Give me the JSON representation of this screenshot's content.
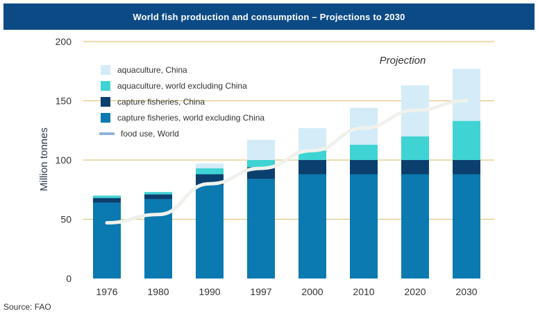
{
  "title": "World fish production and consumption  – Projections to 2030",
  "source": "Source: FAO",
  "chart_data": {
    "type": "bar",
    "stacked": true,
    "categories": [
      "1976",
      "1980",
      "1990",
      "1997",
      "2000",
      "2010",
      "2020",
      "2030"
    ],
    "ylabel": "Million tonnes",
    "xlabel": "",
    "ylim": [
      0,
      200
    ],
    "yticks": [
      "0",
      "50",
      "100",
      "150",
      "200"
    ],
    "grid": true,
    "legend_position": "top-left",
    "projection_label": "Projection",
    "projection_starts_at": "2000",
    "series": [
      {
        "name": "capture fisheries, world excluding China",
        "color": "#0a7ab0",
        "values": [
          64,
          67,
          79,
          84,
          88,
          88,
          88,
          88
        ]
      },
      {
        "name": "capture fisheries, China",
        "color": "#0b3f6e",
        "values": [
          4,
          4,
          9,
          10,
          12,
          12,
          12,
          12
        ]
      },
      {
        "name": "aquaculture, world excluding China",
        "color": "#3fd3d3",
        "values": [
          2,
          2,
          5,
          6,
          8,
          13,
          20,
          33
        ]
      },
      {
        "name": "aquaculture, China",
        "color": "#d3ecf8",
        "values": [
          0,
          0,
          4,
          17,
          19,
          31,
          43,
          44
        ]
      }
    ],
    "line": {
      "name": "food use, World",
      "color": "#f0f1ec",
      "legend_color": "#8fb2dc",
      "values": [
        47,
        54,
        80,
        93,
        108,
        127,
        142,
        150
      ]
    }
  }
}
